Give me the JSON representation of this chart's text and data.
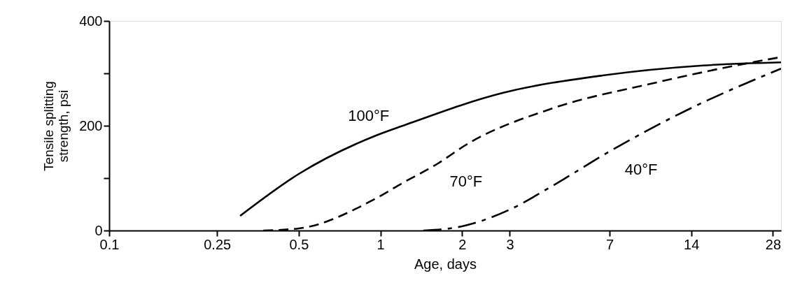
{
  "chart_data": {
    "type": "line",
    "xlabel": "Age, days",
    "ylabel": "Tensile splitting strength, psi",
    "log": "x",
    "xlim": [
      0.1,
      30
    ],
    "xticks": [
      0.1,
      0.25,
      0.5,
      1,
      2,
      3,
      7,
      14,
      28
    ],
    "ylim": [
      0,
      400
    ],
    "yticks": [
      0,
      {
        "value": 100,
        "label": null
      },
      200,
      {
        "value": 300,
        "label": null
      },
      400
    ],
    "grid": false,
    "series": [
      {
        "name": "100°F",
        "color": "#000000",
        "line_style": "solid",
        "x": [
          0.304,
          0.5,
          0.96,
          1.21,
          2.84,
          6.6,
          15.5,
          30
        ],
        "values": [
          28,
          108,
          181,
          200,
          263,
          296,
          315,
          321
        ]
      },
      {
        "name": "70°F",
        "color": "#000000",
        "line_style": "dashed",
        "x": [
          0.37,
          0.5,
          0.96,
          1.21,
          1.63,
          2.06,
          4.3,
          10.1,
          19.1,
          30
        ],
        "values": [
          0,
          4,
          61,
          91,
          128,
          163,
          233,
          281,
          312,
          331
        ]
      },
      {
        "name": "40°F",
        "color": "#000000",
        "line_style": "dashed",
        "x": [
          1.44,
          2,
          2.97,
          4.3,
          7.0,
          13.9,
          30
        ],
        "values": [
          0,
          8,
          39,
          85,
          151,
          233,
          309
        ]
      }
    ]
  }
}
